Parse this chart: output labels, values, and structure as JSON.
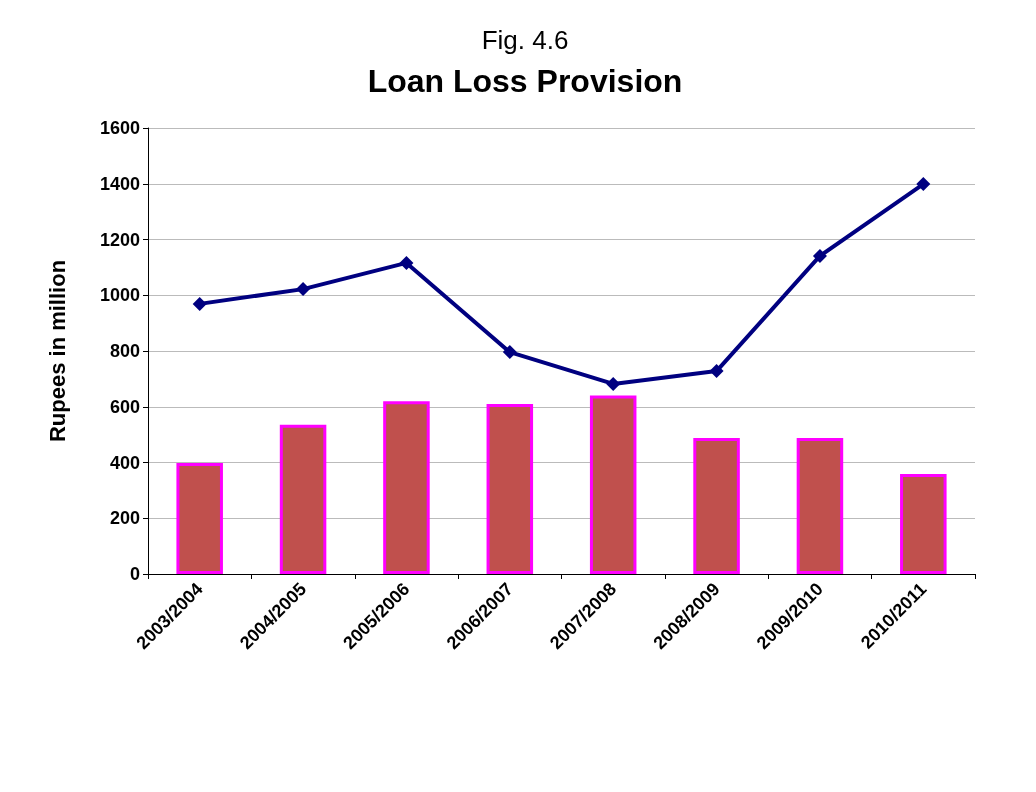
{
  "chart_data": {
    "type": "bar",
    "title": "Fig. 4.6",
    "subtitle": "Loan Loss Provision",
    "ylabel": "Rupees in million",
    "categories": [
      "2003/2004",
      "2004/2005",
      "2005/2006",
      "2006/2007",
      "2007/2008",
      "2008/2009",
      "2009/2010",
      "2010/2011"
    ],
    "series": [
      {
        "color": "#c0504d",
        "values": [
          398,
          535,
          620,
          610,
          640,
          488,
          488,
          359
        ]
      },
      {
        "type": "line",
        "color": "#000080",
        "values": [
          969,
          1022,
          1116,
          796,
          682,
          728,
          1141,
          1399
        ]
      }
    ],
    "ylim": [
      0,
      1600
    ],
    "yticks": [
      0,
      200,
      400,
      600,
      800,
      1000,
      1200,
      1400,
      1600
    ],
    "grid": "y",
    "marker": "diamond"
  }
}
